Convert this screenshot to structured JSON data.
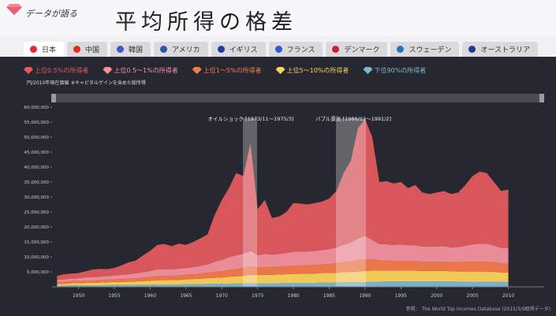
{
  "header": {
    "logo": "データが語る",
    "title": "平均所得の格差"
  },
  "tabs": [
    "日本",
    "中国",
    "韓国",
    "アメリカ",
    "イギリス",
    "フランス",
    "デンマーク",
    "スウェーデン",
    "オーストラリア"
  ],
  "chart_data": {
    "type": "stacked_area",
    "unit_note": "円/2010年現在価値",
    "note": "※キャピタルゲインを含めた総所得",
    "annotations": [
      "オイルショック [1973/11〜1975/3]",
      "バブル景気 [1986/12〜1991/2]"
    ],
    "source": "参照： The World Top Incomes Database (2015/3/9取得データ)",
    "xlim": [
      1946.3,
      2015
    ],
    "xticks": [
      1950,
      1955,
      1960,
      1965,
      1970,
      1975,
      1980,
      1985,
      1990,
      1995,
      2000,
      2005,
      2010
    ],
    "ylim": [
      0,
      60000000
    ],
    "yticks": [
      {
        "value": 5000000,
        "label": "5,000,000"
      },
      {
        "value": 10000000,
        "label": "10,000,000"
      },
      {
        "value": 15000000,
        "label": "15,000,000"
      },
      {
        "value": 20000000,
        "label": "20,000,000"
      },
      {
        "value": 25000000,
        "label": "25,000,000"
      },
      {
        "value": 30000000,
        "label": "30,000,000"
      },
      {
        "value": 35000000,
        "label": "35,000,000"
      },
      {
        "value": 40000000,
        "label": "40,000,000"
      },
      {
        "value": 45000000,
        "label": "45,000,000"
      },
      {
        "value": 50000000,
        "label": "50,000,000"
      },
      {
        "value": 55000000,
        "label": "55,000,000"
      },
      {
        "value": 60000000,
        "label": "60,000,000"
      }
    ],
    "x": [
      1947,
      1948,
      1949,
      1950,
      1951,
      1952,
      1953,
      1954,
      1955,
      1956,
      1957,
      1958,
      1959,
      1960,
      1961,
      1962,
      1963,
      1964,
      1965,
      1966,
      1967,
      1968,
      1969,
      1970,
      1971,
      1972,
      1973,
      1974,
      1975,
      1976,
      1977,
      1978,
      1979,
      1980,
      1981,
      1982,
      1983,
      1984,
      1985,
      1986,
      1987,
      1988,
      1989,
      1990,
      1991,
      1992,
      1993,
      1994,
      1995,
      1996,
      1997,
      1998,
      1999,
      2000,
      2001,
      2002,
      2003,
      2004,
      2005,
      2006,
      2007,
      2008,
      2009,
      2010
    ],
    "series": [
      {
        "name": "上位0.5%の所得者",
        "color": "#e05a5e",
        "values": [
          1300000,
          1700000,
          1600000,
          1700000,
          2000000,
          2500000,
          2600000,
          2300000,
          2500000,
          3200000,
          4000000,
          4300000,
          5600000,
          6700000,
          8200000,
          8400000,
          7700000,
          8300000,
          7700000,
          8400000,
          9200000,
          10000000,
          15600000,
          20000000,
          23100000,
          27500000,
          25900000,
          36000000,
          15400000,
          18000000,
          12200000,
          12500000,
          13700000,
          16300000,
          16100000,
          15700000,
          16000000,
          16200000,
          16900000,
          18900000,
          24000000,
          27200000,
          36800000,
          39000000,
          34300000,
          20700000,
          21100000,
          20500000,
          20900000,
          19100000,
          20100000,
          18000000,
          17600000,
          18000000,
          18400000,
          17800000,
          18200000,
          20300000,
          22800000,
          24100000,
          23600000,
          21200000,
          19000000,
          19500000
        ]
      },
      {
        "name": "上位0.5〜1%の所得者",
        "color": "#f4919d",
        "values": [
          800000,
          900000,
          900000,
          1000000,
          1100000,
          1200000,
          1200000,
          1200000,
          1300000,
          1400000,
          1500000,
          1600000,
          1800000,
          2000000,
          2200000,
          2300000,
          2200000,
          2300000,
          2300000,
          2400000,
          2600000,
          2800000,
          3400000,
          3800000,
          4200000,
          4600000,
          4800000,
          5200000,
          4200000,
          4400000,
          4200000,
          4300000,
          4400000,
          4600000,
          4600000,
          4600000,
          4700000,
          4800000,
          5000000,
          5300000,
          5800000,
          6300000,
          7300000,
          7800000,
          6500000,
          5500000,
          5400000,
          5300000,
          5400000,
          5300000,
          5300000,
          5100000,
          5000000,
          5100000,
          5200000,
          5000000,
          5100000,
          5400000,
          5800000,
          6000000,
          6000000,
          5600000,
          5200000,
          5200000
        ]
      },
      {
        "name": "上位1〜5%の所得者",
        "color": "#f57b4a",
        "values": [
          600000,
          600000,
          700000,
          700000,
          800000,
          800000,
          800000,
          900000,
          900000,
          1000000,
          1000000,
          1100000,
          1200000,
          1300000,
          1400000,
          1400000,
          1400000,
          1500000,
          1500000,
          1600000,
          1700000,
          1800000,
          2000000,
          2100000,
          2300000,
          2400000,
          2600000,
          2800000,
          2500000,
          2600000,
          2600000,
          2600000,
          2700000,
          2800000,
          2800000,
          2800000,
          2900000,
          2900000,
          3000000,
          3100000,
          3300000,
          3500000,
          3800000,
          3900000,
          3800000,
          3400000,
          3300000,
          3300000,
          3300000,
          3200000,
          3200000,
          3100000,
          3100000,
          3100000,
          3100000,
          3000000,
          3100000,
          3200000,
          3300000,
          3300000,
          3300000,
          3200000,
          3000000,
          3000000
        ]
      },
      {
        "name": "上位5〜10%の所得者",
        "color": "#fbd25c",
        "values": [
          600000,
          600000,
          700000,
          700000,
          800000,
          800000,
          900000,
          900000,
          1000000,
          1000000,
          1100000,
          1100000,
          1200000,
          1300000,
          1400000,
          1400000,
          1500000,
          1500000,
          1600000,
          1700000,
          1800000,
          1900000,
          2000000,
          2100000,
          2300000,
          2400000,
          2600000,
          2800000,
          2700000,
          2800000,
          2800000,
          2900000,
          2900000,
          3000000,
          3000000,
          3100000,
          3100000,
          3200000,
          3200000,
          3300000,
          3400000,
          3500000,
          3600000,
          3700000,
          3800000,
          3700000,
          3700000,
          3600000,
          3600000,
          3600000,
          3600000,
          3500000,
          3500000,
          3500000,
          3500000,
          3400000,
          3400000,
          3400000,
          3400000,
          3400000,
          3400000,
          3300000,
          3200000,
          3200000
        ]
      },
      {
        "name": "下位90%の所得者",
        "color": "#7db8d3",
        "values": [
          400000,
          400000,
          500000,
          500000,
          500000,
          500000,
          500000,
          600000,
          600000,
          600000,
          600000,
          700000,
          700000,
          700000,
          800000,
          800000,
          800000,
          800000,
          900000,
          900000,
          900000,
          1000000,
          1000000,
          1000000,
          1100000,
          1100000,
          1100000,
          1200000,
          1200000,
          1200000,
          1200000,
          1200000,
          1300000,
          1300000,
          1300000,
          1300000,
          1300000,
          1400000,
          1400000,
          1400000,
          1500000,
          1500000,
          1500000,
          1600000,
          1600000,
          1700000,
          1800000,
          1800000,
          1800000,
          1800000,
          1800000,
          1800000,
          1800000,
          1800000,
          1800000,
          1800000,
          1700000,
          1700000,
          1700000,
          1700000,
          1700000,
          1700000,
          1600000,
          1600000
        ]
      }
    ]
  }
}
